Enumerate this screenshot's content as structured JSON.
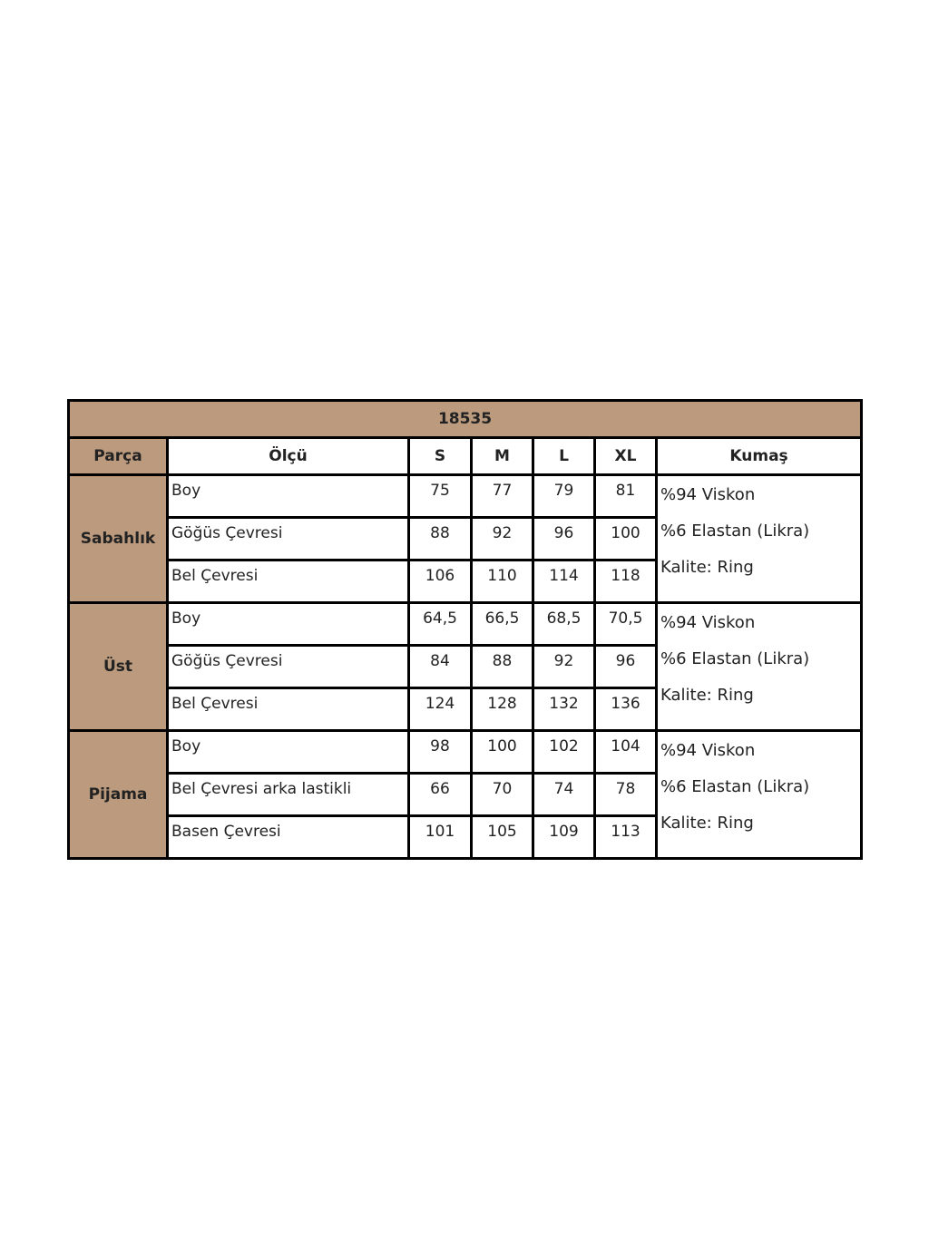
{
  "table": {
    "title": "18535",
    "headers": [
      "Parça",
      "Ölçü",
      "S",
      "M",
      "L",
      "XL",
      "Kumaş"
    ],
    "colors": {
      "header_brown": "#bb9a7e",
      "border": "#000000"
    },
    "groups": [
      {
        "part": "Sabahlık",
        "rows": [
          {
            "measure": "Boy",
            "values": [
              "75",
              "77",
              "79",
              "81"
            ]
          },
          {
            "measure": "Göğüs Çevresi",
            "values": [
              "88",
              "92",
              "96",
              "100"
            ]
          },
          {
            "measure": "Bel Çevresi",
            "values": [
              "106",
              "110",
              "114",
              "118"
            ]
          }
        ],
        "fabric": [
          "%94 Viskon",
          "%6 Elastan (Likra)",
          "Kalite: Ring"
        ]
      },
      {
        "part": "Üst",
        "rows": [
          {
            "measure": "Boy",
            "values": [
              "64,5",
              "66,5",
              "68,5",
              "70,5"
            ]
          },
          {
            "measure": "Göğüs Çevresi",
            "values": [
              "84",
              "88",
              "92",
              "96"
            ]
          },
          {
            "measure": "Bel Çevresi",
            "values": [
              "124",
              "128",
              "132",
              "136"
            ]
          }
        ],
        "fabric": [
          "%94 Viskon",
          "%6 Elastan (Likra)",
          "Kalite: Ring"
        ]
      },
      {
        "part": "Pijama",
        "rows": [
          {
            "measure": "Boy",
            "values": [
              "98",
              "100",
              "102",
              "104"
            ]
          },
          {
            "measure": "Bel Çevresi arka lastikli",
            "values": [
              "66",
              "70",
              "74",
              "78"
            ]
          },
          {
            "measure": "Basen Çevresi",
            "values": [
              "101",
              "105",
              "109",
              "113"
            ]
          }
        ],
        "fabric": [
          "%94 Viskon",
          "%6 Elastan (Likra)",
          "Kalite: Ring"
        ]
      }
    ]
  }
}
